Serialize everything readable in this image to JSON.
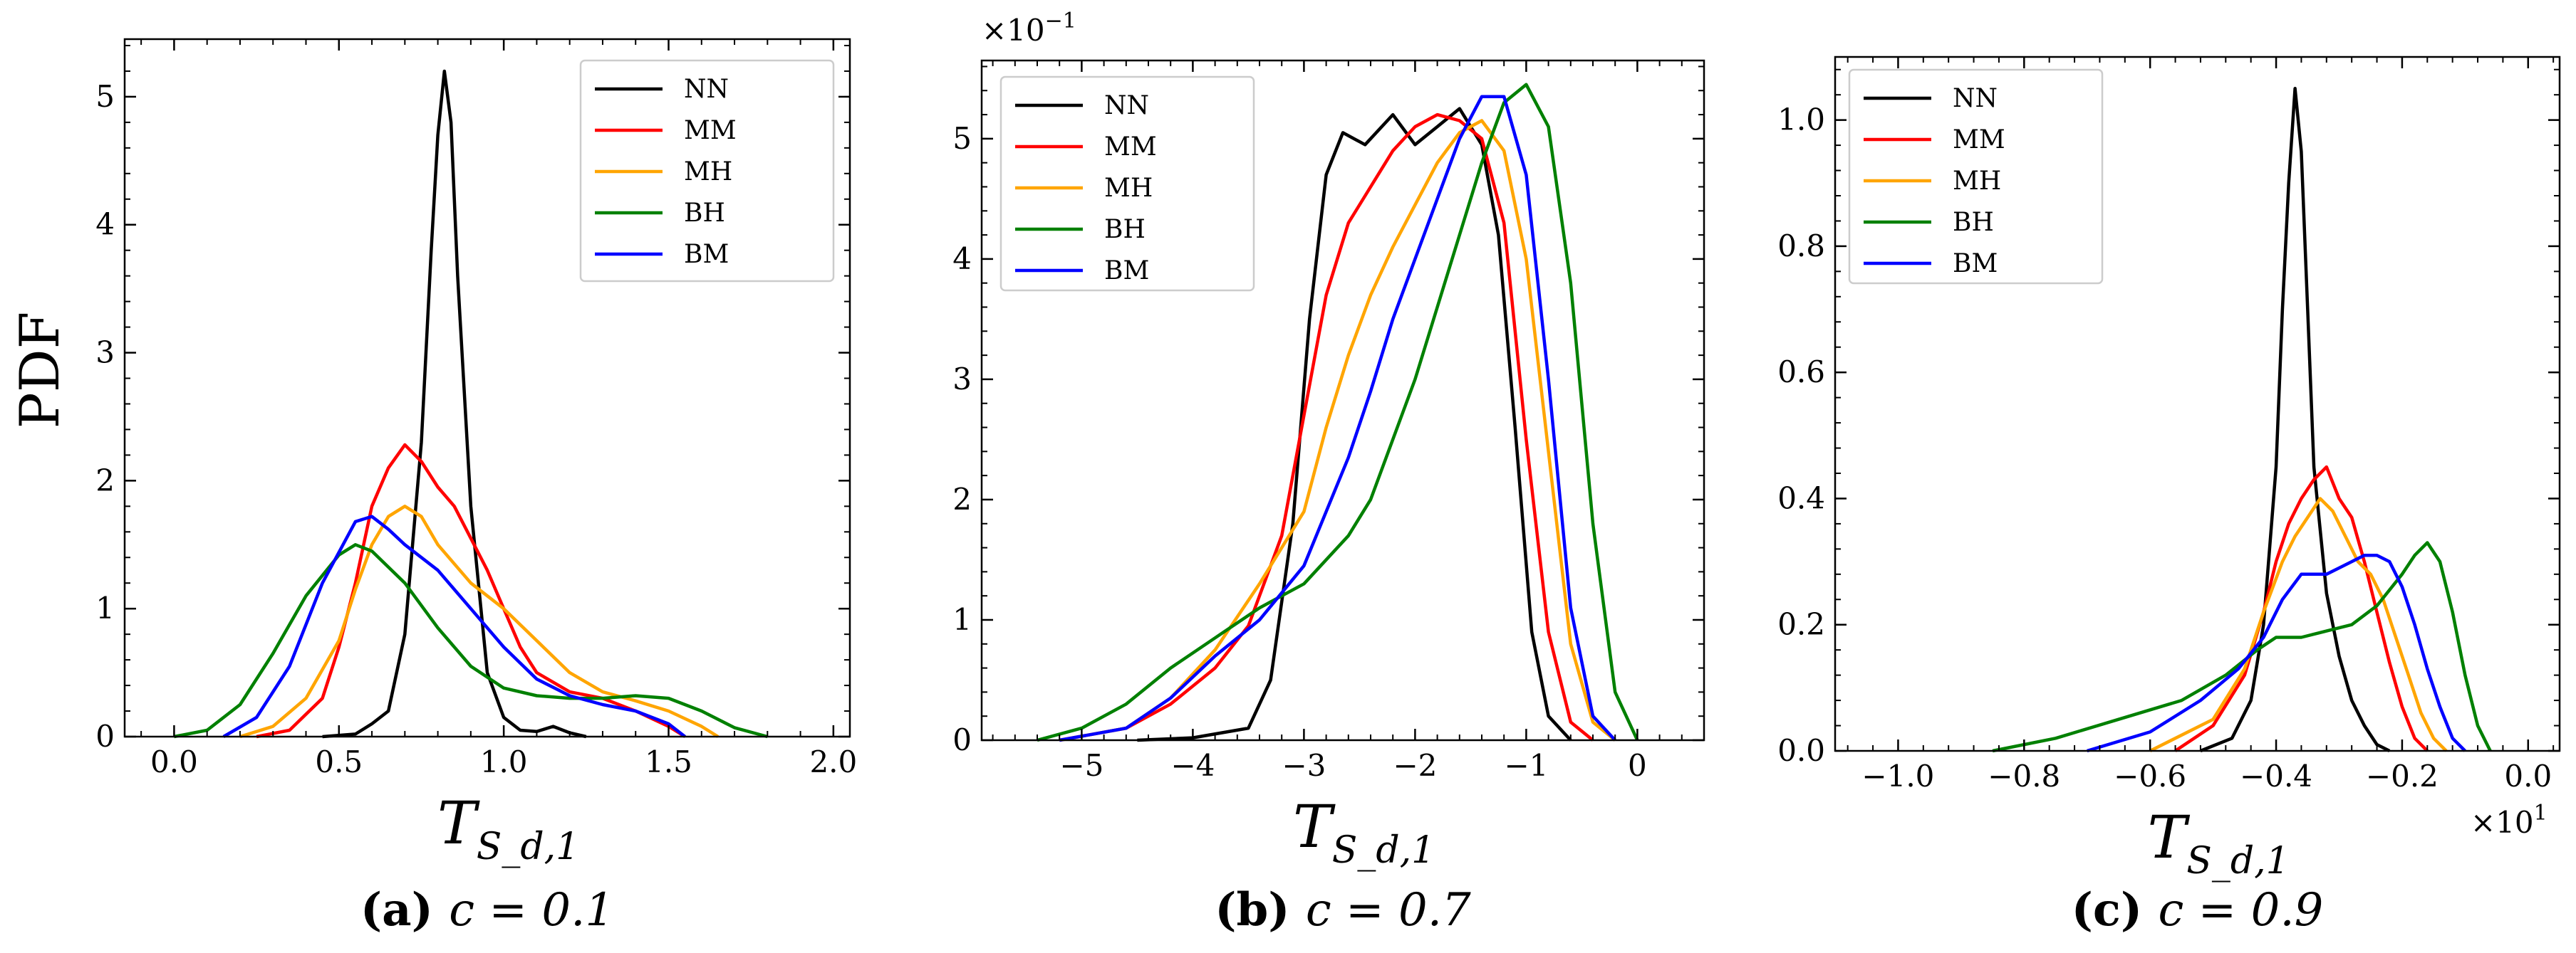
{
  "ylabel": "PDF",
  "colors": {
    "NN": "#000000",
    "MM": "#ff0000",
    "MH": "#ffa500",
    "BH": "#008000",
    "BM": "#0000ff"
  },
  "chart_data": [
    {
      "type": "line",
      "id": "a",
      "caption_letter": "(a)",
      "caption_rest": "c = 0.1",
      "xlabel": "T",
      "xlabel_sub": "S_d,1",
      "ylabel": "PDF",
      "xlim": [
        -0.15,
        2.05
      ],
      "ylim": [
        0,
        5.45
      ],
      "xticks": [
        0.0,
        0.5,
        1.0,
        1.5,
        2.0
      ],
      "xtick_labels": [
        "0.0",
        "0.5",
        "1.0",
        "1.5",
        "2.0"
      ],
      "yticks": [
        0,
        1,
        2,
        3,
        4,
        5
      ],
      "ytick_labels": [
        "0",
        "1",
        "2",
        "3",
        "4",
        "5"
      ],
      "multiplier": "",
      "legend": "top-right",
      "series": [
        {
          "name": "NN",
          "x": [
            0.45,
            0.55,
            0.6,
            0.65,
            0.7,
            0.75,
            0.78,
            0.8,
            0.82,
            0.84,
            0.86,
            0.9,
            0.95,
            1.0,
            1.05,
            1.1,
            1.15,
            1.2,
            1.25
          ],
          "y": [
            0,
            0.02,
            0.1,
            0.2,
            0.8,
            2.3,
            3.8,
            4.7,
            5.2,
            4.8,
            3.6,
            1.8,
            0.5,
            0.15,
            0.05,
            0.04,
            0.08,
            0.03,
            0
          ]
        },
        {
          "name": "MM",
          "x": [
            0.25,
            0.35,
            0.45,
            0.5,
            0.55,
            0.6,
            0.65,
            0.7,
            0.75,
            0.8,
            0.85,
            0.9,
            0.95,
            1.0,
            1.05,
            1.1,
            1.2,
            1.3,
            1.4,
            1.5,
            1.55
          ],
          "y": [
            0,
            0.05,
            0.3,
            0.7,
            1.2,
            1.8,
            2.1,
            2.28,
            2.15,
            1.95,
            1.8,
            1.55,
            1.3,
            1.0,
            0.7,
            0.5,
            0.35,
            0.3,
            0.2,
            0.08,
            0
          ]
        },
        {
          "name": "MH",
          "x": [
            0.2,
            0.3,
            0.4,
            0.5,
            0.55,
            0.6,
            0.65,
            0.7,
            0.75,
            0.8,
            0.85,
            0.9,
            1.0,
            1.1,
            1.2,
            1.3,
            1.4,
            1.5,
            1.6,
            1.65
          ],
          "y": [
            0,
            0.08,
            0.3,
            0.75,
            1.15,
            1.5,
            1.72,
            1.8,
            1.72,
            1.5,
            1.35,
            1.2,
            1.0,
            0.75,
            0.5,
            0.35,
            0.28,
            0.2,
            0.08,
            0
          ]
        },
        {
          "name": "BH",
          "x": [
            0.0,
            0.1,
            0.2,
            0.3,
            0.4,
            0.5,
            0.55,
            0.6,
            0.7,
            0.8,
            0.9,
            1.0,
            1.1,
            1.2,
            1.3,
            1.4,
            1.5,
            1.6,
            1.7,
            1.8
          ],
          "y": [
            0,
            0.05,
            0.25,
            0.65,
            1.1,
            1.42,
            1.5,
            1.45,
            1.2,
            0.85,
            0.55,
            0.38,
            0.32,
            0.3,
            0.3,
            0.32,
            0.3,
            0.2,
            0.07,
            0
          ]
        },
        {
          "name": "BM",
          "x": [
            0.15,
            0.25,
            0.35,
            0.45,
            0.55,
            0.6,
            0.65,
            0.7,
            0.8,
            0.9,
            1.0,
            1.1,
            1.2,
            1.3,
            1.4,
            1.5,
            1.55
          ],
          "y": [
            0,
            0.15,
            0.55,
            1.2,
            1.68,
            1.72,
            1.62,
            1.5,
            1.3,
            1.0,
            0.7,
            0.45,
            0.32,
            0.25,
            0.2,
            0.1,
            0
          ]
        }
      ]
    },
    {
      "type": "line",
      "id": "b",
      "caption_letter": "(b)",
      "caption_rest": "c = 0.7",
      "xlabel": "T",
      "xlabel_sub": "S_d,1",
      "ylabel": "",
      "xlim": [
        -5.9,
        0.6
      ],
      "ylim": [
        0,
        5.65
      ],
      "xticks": [
        -5,
        -4,
        -3,
        -2,
        -1,
        0
      ],
      "xtick_labels": [
        "−5",
        "−4",
        "−3",
        "−2",
        "−1",
        "0"
      ],
      "yticks": [
        0,
        1,
        2,
        3,
        4,
        5
      ],
      "ytick_labels": [
        "0",
        "1",
        "2",
        "3",
        "4",
        "5"
      ],
      "multiplier": "×10",
      "multiplier_exp": "−1",
      "legend": "top-left",
      "series": [
        {
          "name": "NN",
          "x": [
            -4.5,
            -4.0,
            -3.5,
            -3.3,
            -3.1,
            -2.95,
            -2.8,
            -2.65,
            -2.45,
            -2.2,
            -2.0,
            -1.8,
            -1.6,
            -1.4,
            -1.25,
            -1.1,
            -0.95,
            -0.8,
            -0.6
          ],
          "y": [
            0,
            0.02,
            0.1,
            0.5,
            1.8,
            3.5,
            4.7,
            5.05,
            4.95,
            5.2,
            4.95,
            5.1,
            5.25,
            4.95,
            4.2,
            2.6,
            0.9,
            0.2,
            0
          ]
        },
        {
          "name": "MM",
          "x": [
            -5.2,
            -4.6,
            -4.2,
            -3.8,
            -3.5,
            -3.2,
            -3.0,
            -2.8,
            -2.6,
            -2.4,
            -2.2,
            -2.0,
            -1.8,
            -1.6,
            -1.4,
            -1.2,
            -1.0,
            -0.8,
            -0.6,
            -0.4
          ],
          "y": [
            0,
            0.1,
            0.3,
            0.6,
            0.95,
            1.7,
            2.7,
            3.7,
            4.3,
            4.6,
            4.9,
            5.1,
            5.2,
            5.15,
            5.0,
            4.3,
            2.5,
            0.9,
            0.15,
            0
          ]
        },
        {
          "name": "MH",
          "x": [
            -5.2,
            -4.6,
            -4.2,
            -3.8,
            -3.4,
            -3.0,
            -2.8,
            -2.6,
            -2.4,
            -2.2,
            -2.0,
            -1.8,
            -1.6,
            -1.4,
            -1.2,
            -1.0,
            -0.8,
            -0.6,
            -0.4,
            -0.2
          ],
          "y": [
            0,
            0.1,
            0.35,
            0.75,
            1.3,
            1.9,
            2.6,
            3.2,
            3.7,
            4.1,
            4.45,
            4.8,
            5.05,
            5.15,
            4.9,
            4.0,
            2.4,
            0.8,
            0.15,
            0
          ]
        },
        {
          "name": "BH",
          "x": [
            -5.4,
            -5.0,
            -4.6,
            -4.2,
            -3.8,
            -3.4,
            -3.0,
            -2.6,
            -2.4,
            -2.2,
            -2.0,
            -1.8,
            -1.6,
            -1.4,
            -1.2,
            -1.0,
            -0.8,
            -0.6,
            -0.4,
            -0.2,
            0.0
          ],
          "y": [
            0,
            0.1,
            0.3,
            0.6,
            0.85,
            1.1,
            1.3,
            1.7,
            2.0,
            2.5,
            3.0,
            3.6,
            4.2,
            4.8,
            5.3,
            5.45,
            5.1,
            3.8,
            1.8,
            0.4,
            0
          ]
        },
        {
          "name": "BM",
          "x": [
            -5.2,
            -4.6,
            -4.2,
            -3.8,
            -3.4,
            -3.0,
            -2.8,
            -2.6,
            -2.4,
            -2.2,
            -2.0,
            -1.8,
            -1.6,
            -1.4,
            -1.2,
            -1.0,
            -0.8,
            -0.6,
            -0.4,
            -0.2
          ],
          "y": [
            0,
            0.1,
            0.35,
            0.7,
            1.0,
            1.45,
            1.9,
            2.35,
            2.9,
            3.5,
            4.0,
            4.5,
            5.0,
            5.35,
            5.35,
            4.7,
            3.0,
            1.1,
            0.2,
            0
          ]
        }
      ]
    },
    {
      "type": "line",
      "id": "c",
      "caption_letter": "(c)",
      "caption_rest": "c = 0.9",
      "xlabel": "T",
      "xlabel_sub": "S_d,1",
      "ylabel": "",
      "xlim": [
        -1.1,
        0.05
      ],
      "ylim": [
        0,
        1.1
      ],
      "xticks": [
        -1.0,
        -0.8,
        -0.6,
        -0.4,
        -0.2,
        0.0
      ],
      "xtick_labels": [
        "−1.0",
        "−0.8",
        "−0.6",
        "−0.4",
        "−0.2",
        "0.0"
      ],
      "yticks": [
        0.0,
        0.2,
        0.4,
        0.6,
        0.8,
        1.0
      ],
      "ytick_labels": [
        "0.0",
        "0.2",
        "0.4",
        "0.6",
        "0.8",
        "1.0"
      ],
      "multiplier": "×10",
      "multiplier_exp": "1",
      "legend": "top-left",
      "series": [
        {
          "name": "NN",
          "x": [
            -0.52,
            -0.47,
            -0.44,
            -0.42,
            -0.4,
            -0.39,
            -0.38,
            -0.37,
            -0.36,
            -0.35,
            -0.34,
            -0.32,
            -0.3,
            -0.28,
            -0.26,
            -0.24,
            -0.22
          ],
          "y": [
            0,
            0.02,
            0.08,
            0.2,
            0.45,
            0.7,
            0.9,
            1.05,
            0.95,
            0.7,
            0.45,
            0.25,
            0.15,
            0.08,
            0.04,
            0.01,
            0
          ]
        },
        {
          "name": "MM",
          "x": [
            -0.56,
            -0.5,
            -0.45,
            -0.42,
            -0.4,
            -0.38,
            -0.36,
            -0.34,
            -0.32,
            -0.3,
            -0.28,
            -0.26,
            -0.24,
            -0.22,
            -0.2,
            -0.18,
            -0.16
          ],
          "y": [
            0,
            0.04,
            0.12,
            0.22,
            0.3,
            0.36,
            0.4,
            0.43,
            0.45,
            0.4,
            0.37,
            0.3,
            0.22,
            0.14,
            0.07,
            0.02,
            0
          ]
        },
        {
          "name": "MH",
          "x": [
            -0.6,
            -0.5,
            -0.45,
            -0.42,
            -0.39,
            -0.37,
            -0.35,
            -0.33,
            -0.31,
            -0.29,
            -0.27,
            -0.25,
            -0.23,
            -0.21,
            -0.19,
            -0.17,
            -0.15,
            -0.13
          ],
          "y": [
            0,
            0.05,
            0.13,
            0.22,
            0.3,
            0.34,
            0.37,
            0.4,
            0.38,
            0.34,
            0.3,
            0.28,
            0.24,
            0.18,
            0.12,
            0.06,
            0.02,
            0
          ]
        },
        {
          "name": "BH",
          "x": [
            -0.85,
            -0.75,
            -0.65,
            -0.55,
            -0.48,
            -0.43,
            -0.4,
            -0.36,
            -0.32,
            -0.28,
            -0.24,
            -0.2,
            -0.18,
            -0.16,
            -0.14,
            -0.12,
            -0.1,
            -0.08,
            -0.06
          ],
          "y": [
            0,
            0.02,
            0.05,
            0.08,
            0.12,
            0.16,
            0.18,
            0.18,
            0.19,
            0.2,
            0.23,
            0.28,
            0.31,
            0.33,
            0.3,
            0.22,
            0.12,
            0.04,
            0
          ]
        },
        {
          "name": "BM",
          "x": [
            -0.7,
            -0.6,
            -0.52,
            -0.46,
            -0.42,
            -0.39,
            -0.36,
            -0.34,
            -0.32,
            -0.3,
            -0.28,
            -0.26,
            -0.24,
            -0.22,
            -0.2,
            -0.18,
            -0.16,
            -0.14,
            -0.12,
            -0.1
          ],
          "y": [
            0,
            0.03,
            0.08,
            0.13,
            0.18,
            0.24,
            0.28,
            0.28,
            0.28,
            0.29,
            0.3,
            0.31,
            0.31,
            0.3,
            0.26,
            0.2,
            0.13,
            0.07,
            0.02,
            0
          ]
        }
      ]
    }
  ]
}
